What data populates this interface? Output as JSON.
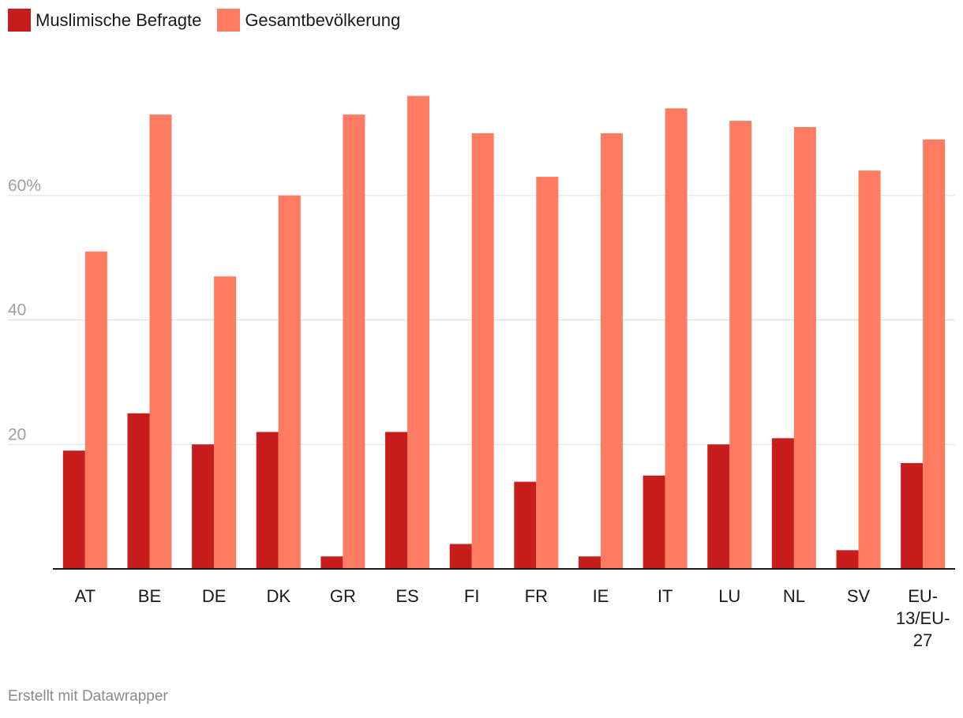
{
  "colors": {
    "series1": "#c71e1d",
    "series2": "#ff7c62",
    "grid": "#e0e0e0",
    "axis": "#1a1a1a",
    "tick_label": "#a0a0a0",
    "category_label": "#1a1a1a"
  },
  "legend": [
    {
      "label": "Muslimische Befragte",
      "color": "#c71e1d"
    },
    {
      "label": "Gesamtbevölkerung",
      "color": "#ff7c62"
    }
  ],
  "footer": "Erstellt mit Datawrapper",
  "chart_data": {
    "type": "bar",
    "title": "",
    "xlabel": "",
    "ylabel": "",
    "ylim": [
      0,
      80
    ],
    "grid": true,
    "legend_position": "top-left",
    "yticks": [
      {
        "value": 20,
        "label": "20"
      },
      {
        "value": 40,
        "label": "40"
      },
      {
        "value": 60,
        "label": "60%"
      }
    ],
    "categories": [
      [
        "AT"
      ],
      [
        "BE"
      ],
      [
        "DE"
      ],
      [
        "DK"
      ],
      [
        "GR"
      ],
      [
        "ES"
      ],
      [
        "FI"
      ],
      [
        "FR"
      ],
      [
        "IE"
      ],
      [
        "IT"
      ],
      [
        "LU"
      ],
      [
        "NL"
      ],
      [
        "SV"
      ],
      [
        "EU-",
        "13/EU-",
        "27"
      ]
    ],
    "series": [
      {
        "name": "Muslimische Befragte",
        "values": [
          19,
          25,
          20,
          22,
          2,
          22,
          4,
          14,
          2,
          15,
          20,
          21,
          3,
          17
        ]
      },
      {
        "name": "Gesamtbevölkerung",
        "values": [
          51,
          73,
          47,
          60,
          73,
          76,
          70,
          63,
          70,
          74,
          72,
          71,
          64,
          69
        ]
      }
    ]
  }
}
